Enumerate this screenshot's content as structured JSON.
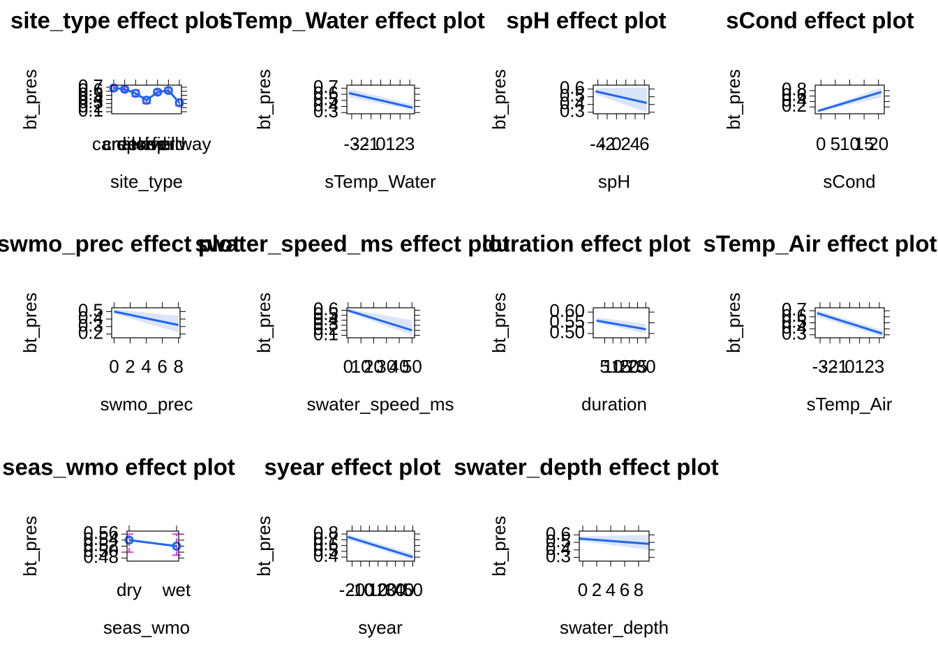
{
  "chart_data": [
    {
      "type": "categorical",
      "title": "site_type effect plot",
      "xlabel": "site_type",
      "ylabel": "bt_pres",
      "categories": [
        "canal",
        "creek",
        "ditch",
        "pond",
        "river",
        "field",
        "spillway"
      ],
      "values": [
        0.68,
        0.65,
        0.55,
        0.38,
        0.58,
        0.62,
        0.32
      ],
      "lower": [
        0.62,
        0.6,
        0.47,
        0.3,
        0.52,
        0.56,
        0.25
      ],
      "upper": [
        0.73,
        0.7,
        0.63,
        0.46,
        0.64,
        0.68,
        0.4
      ],
      "ylim": [
        0.05,
        0.75
      ],
      "yticks": [
        0.1,
        0.2,
        0.3,
        0.4,
        0.5,
        0.6,
        0.7
      ],
      "color": "#1f66f2",
      "ci_color": "#e03ce0"
    },
    {
      "type": "line",
      "title": "sTemp_Water effect plot",
      "xlabel": "sTemp_Water",
      "ylabel": "bt_pres",
      "x": [
        -3.3,
        3.3
      ],
      "values": [
        0.62,
        0.38
      ],
      "lower": [
        0.55,
        0.34
      ],
      "upper": [
        0.69,
        0.43
      ],
      "xlim": [
        -3.5,
        3.5
      ],
      "xticks": [
        -3,
        -2,
        -1,
        0,
        1,
        2,
        3
      ],
      "ylim": [
        0.28,
        0.75
      ],
      "yticks": [
        0.3,
        0.4,
        0.5,
        0.6,
        0.7
      ],
      "color": "#1f66f2",
      "band_color": "#dbe5fa"
    },
    {
      "type": "line",
      "title": "spH effect plot",
      "xlabel": "spH",
      "ylabel": "bt_pres",
      "x": [
        -4.5,
        6.5
      ],
      "values": [
        0.57,
        0.42
      ],
      "lower": [
        0.53,
        0.3
      ],
      "upper": [
        0.61,
        0.62
      ],
      "xlim": [
        -5,
        7
      ],
      "xticks": [
        -4,
        -2,
        0,
        2,
        4,
        6
      ],
      "ylim": [
        0.28,
        0.65
      ],
      "yticks": [
        0.3,
        0.4,
        0.5,
        0.6
      ],
      "color": "#1f66f2",
      "band_color": "#dbe5fa"
    },
    {
      "type": "line",
      "title": "sCond effect plot",
      "xlabel": "sCond",
      "ylabel": "bt_pres",
      "x": [
        -1,
        21
      ],
      "values": [
        0.05,
        0.75
      ],
      "lower": [
        0.02,
        0.55
      ],
      "upper": [
        0.1,
        0.9
      ],
      "xlim": [
        -2,
        22
      ],
      "xticks": [
        0,
        5,
        10,
        15,
        20
      ],
      "ylim": [
        -0.05,
        1.0
      ],
      "yticks": [
        0.2,
        0.4,
        0.6,
        0.8
      ],
      "color": "#1f66f2",
      "band_color": "#dbe5fa"
    },
    {
      "type": "line",
      "title": "swmo_prec effect plot",
      "xlabel": "swmo_prec",
      "ylabel": "bt_pres",
      "x": [
        0,
        8
      ],
      "values": [
        0.5,
        0.32
      ],
      "lower": [
        0.47,
        0.22
      ],
      "upper": [
        0.53,
        0.44
      ],
      "xlim": [
        -0.3,
        8.2
      ],
      "xticks": [
        0,
        2,
        4,
        6,
        8
      ],
      "ylim": [
        0.15,
        0.55
      ],
      "yticks": [
        0.2,
        0.3,
        0.4,
        0.5
      ],
      "color": "#1f66f2",
      "band_color": "#dbe5fa"
    },
    {
      "type": "line",
      "title": "swater_speed_ms effect plot",
      "xlabel": "swater_speed_ms",
      "ylabel": "bt_pres",
      "x": [
        -0.5,
        50
      ],
      "values": [
        0.6,
        0.2
      ],
      "lower": [
        0.56,
        0.1
      ],
      "upper": [
        0.63,
        0.4
      ],
      "xlim": [
        -1,
        52
      ],
      "xticks": [
        0,
        10,
        20,
        30,
        40,
        50
      ],
      "ylim": [
        0.05,
        0.65
      ],
      "yticks": [
        0.1,
        0.2,
        0.3,
        0.4,
        0.5,
        0.6
      ],
      "color": "#1f66f2",
      "band_color": "#dbe5fa"
    },
    {
      "type": "line",
      "title": "duration effect plot",
      "xlabel": "duration",
      "ylabel": "bt_pres",
      "x": [
        0,
        30
      ],
      "values": [
        0.56,
        0.52
      ],
      "lower": [
        0.55,
        0.5
      ],
      "upper": [
        0.575,
        0.545
      ],
      "xlim": [
        -2,
        32
      ],
      "xticks": [
        5,
        10,
        15,
        20,
        25,
        30
      ],
      "ylim": [
        0.48,
        0.62
      ],
      "yticks": [
        {
          "value": 0.5,
          "label": "0.50"
        },
        0.55,
        {
          "value": 0.6,
          "label": "0.60"
        }
      ],
      "color": "#1f66f2",
      "band_color": "#dbe5fa"
    },
    {
      "type": "line",
      "title": "sTemp_Air effect plot",
      "xlabel": "sTemp_Air",
      "ylabel": "bt_pres",
      "x": [
        -3.3,
        3.3
      ],
      "values": [
        0.66,
        0.32
      ],
      "lower": [
        0.6,
        0.27
      ],
      "upper": [
        0.71,
        0.38
      ],
      "xlim": [
        -3.5,
        3.5
      ],
      "xticks": [
        -3,
        -2,
        -1,
        0,
        1,
        2,
        3
      ],
      "ylim": [
        0.25,
        0.75
      ],
      "yticks": [
        0.3,
        0.4,
        0.5,
        0.6,
        0.7
      ],
      "color": "#1f66f2",
      "band_color": "#dbe5fa"
    },
    {
      "type": "categorical",
      "title": "seas_wmo effect plot",
      "xlabel": "seas_wmo",
      "ylabel": "bt_pres",
      "categories": [
        "dry",
        "wet"
      ],
      "values": [
        0.54,
        0.52
      ],
      "lower": [
        0.5,
        0.49
      ],
      "upper": [
        0.56,
        0.56
      ],
      "ylim": [
        0.47,
        0.57
      ],
      "yticks": [
        0.48,
        {
          "value": 0.5,
          "label": "0.50"
        },
        0.52,
        0.54,
        0.56
      ],
      "color": "#1f66f2",
      "ci_color": "#e03ce0"
    },
    {
      "type": "line",
      "title": "syear effect plot",
      "xlabel": "syear",
      "ylabel": "bt_pres",
      "x": [
        -25,
        50
      ],
      "values": [
        0.75,
        0.4
      ],
      "lower": [
        0.7,
        0.35
      ],
      "upper": [
        0.8,
        0.46
      ],
      "xlim": [
        -26,
        52
      ],
      "xticks": [
        -20,
        -10,
        0,
        10,
        20,
        30,
        40,
        50
      ],
      "ylim": [
        0.33,
        0.85
      ],
      "yticks": [
        0.4,
        0.5,
        0.6,
        0.7,
        0.8
      ],
      "color": "#1f66f2",
      "band_color": "#dbe5fa"
    },
    {
      "type": "line",
      "title": "swater_depth effect plot",
      "xlabel": "swater_depth",
      "ylabel": "bt_pres",
      "x": [
        -0.5,
        9.5
      ],
      "values": [
        0.55,
        0.48
      ],
      "lower": [
        0.52,
        0.4
      ],
      "upper": [
        0.58,
        0.6
      ],
      "xlim": [
        -0.5,
        9.5
      ],
      "xticks": [
        0,
        2,
        4,
        6,
        8
      ],
      "ylim": [
        0.25,
        0.65
      ],
      "yticks": [
        0.3,
        0.4,
        0.5,
        0.6
      ],
      "color": "#1f66f2",
      "band_color": "#dbe5fa"
    }
  ]
}
